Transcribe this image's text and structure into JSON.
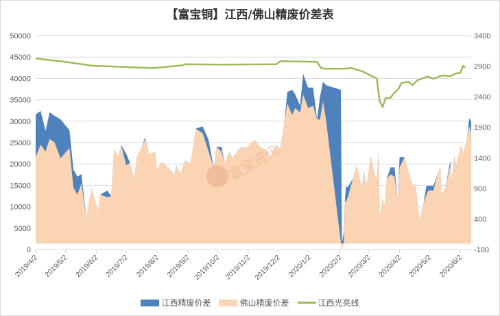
{
  "chart_data": {
    "type": "area",
    "title": "【富宝铜】江西/佛山精废价差表",
    "watermark": "富宝资讯",
    "left_axis": {
      "ylim": [
        0,
        50000
      ],
      "ticks": [
        "0",
        "5000",
        "10000",
        "15000",
        "20000",
        "25000",
        "30000",
        "35000",
        "40000",
        "45000",
        "50000"
      ]
    },
    "right_axis": {
      "ylim": [
        -100,
        3400
      ],
      "ticks": [
        "-100",
        "400",
        "900",
        "1400",
        "1900",
        "2400",
        "2900",
        "3400"
      ]
    },
    "x_ticks": [
      "2019/4/2",
      "2019/5/2",
      "2019/6/2",
      "2019/7/2",
      "2019/8/2",
      "2019/9/2",
      "2019/10/2",
      "2019/11/2",
      "2019/12/2",
      "2020/1/2",
      "2020/2/2",
      "2020/3/2",
      "2020/4/2",
      "2020/5/2",
      "2020/6/2"
    ],
    "grid": true,
    "legend_position": "bottom",
    "colors": {
      "jiangxi": "#4f81bd",
      "foshan": "#fbd4b4",
      "line": "#9bbb59"
    },
    "series": [
      {
        "name": "江西精废价差",
        "type": "area",
        "axis": "right",
        "points": [
          [
            "2019/4/2",
            2110
          ],
          [
            "2019/4/7",
            2169
          ],
          [
            "2019/4/12",
            1841
          ],
          [
            "2019/4/16",
            2144
          ],
          [
            "2019/4/21",
            2088
          ],
          [
            "2019/4/27",
            2031
          ],
          [
            "2019/5/6",
            1852
          ],
          [
            "2019/5/10",
            1205
          ],
          [
            "2019/5/14",
            1092
          ],
          [
            "2019/5/18",
            1134
          ],
          [
            "2019/5/23",
            419
          ],
          [
            "2019/5/28",
            910
          ],
          [
            "2019/6/4",
            532
          ],
          [
            "2019/6/6",
            797
          ],
          [
            "2019/6/13",
            865
          ],
          [
            "2019/6/17",
            775
          ],
          [
            "2019/6/20",
            1541
          ],
          [
            "2019/6/24",
            1411
          ],
          [
            "2019/6/27",
            1616
          ],
          [
            "2019/7/2",
            1467
          ],
          [
            "2019/7/6",
            1317
          ],
          [
            "2019/7/10",
            1055
          ],
          [
            "2019/7/13",
            1429
          ],
          [
            "2019/7/17",
            1541
          ],
          [
            "2019/7/21",
            1740
          ],
          [
            "2019/7/25",
            1448
          ],
          [
            "2019/7/31",
            1504
          ],
          [
            "2019/8/2",
            1205
          ],
          [
            "2019/8/7",
            1336
          ],
          [
            "2019/8/14",
            1224
          ],
          [
            "2019/8/20",
            1131
          ],
          [
            "2019/8/21",
            1280
          ],
          [
            "2019/8/26",
            1131
          ],
          [
            "2019/8/30",
            1355
          ],
          [
            "2019/9/5",
            1317
          ],
          [
            "2019/9/7",
            1541
          ],
          [
            "2019/9/10",
            1878
          ],
          [
            "2019/9/17",
            1916
          ],
          [
            "2019/9/23",
            1692
          ],
          [
            "2019/9/28",
            1243
          ],
          [
            "2019/10/1",
            1579
          ],
          [
            "2019/10/6",
            1579
          ],
          [
            "2019/10/9",
            1317
          ],
          [
            "2019/10/14",
            1504
          ],
          [
            "2019/10/17",
            1392
          ],
          [
            "2019/10/23",
            1541
          ],
          [
            "2019/10/26",
            1579
          ],
          [
            "2019/10/31",
            1560
          ],
          [
            "2019/11/8",
            1692
          ],
          [
            "2019/11/14",
            1579
          ],
          [
            "2019/11/21",
            1504
          ],
          [
            "2019/11/23",
            1373
          ],
          [
            "2019/11/30",
            1616
          ],
          [
            "2019/12/4",
            1541
          ],
          [
            "2019/12/8",
            1953
          ],
          [
            "2019/12/11",
            2477
          ],
          [
            "2019/12/16",
            2514
          ],
          [
            "2019/12/19",
            2439
          ],
          [
            "2019/12/24",
            2252
          ],
          [
            "2019/12/27",
            2775
          ],
          [
            "2020/1/1",
            2551
          ],
          [
            "2020/1/6",
            2551
          ],
          [
            "2020/1/10",
            2028
          ],
          [
            "2020/1/13",
            2402
          ],
          [
            "2020/1/16",
            2645
          ],
          [
            "2020/1/19",
            2589
          ],
          [
            "2020/2/3",
            2514
          ],
          [
            "2020/2/4",
            9
          ],
          [
            "2020/2/6",
            195
          ],
          [
            "2020/2/7",
            682
          ],
          [
            "2020/2/8",
            924
          ],
          [
            "2020/2/10",
            924
          ],
          [
            "2020/2/15",
            1055
          ],
          [
            "2020/2/19",
            1280
          ],
          [
            "2020/2/24",
            906
          ],
          [
            "2020/2/26",
            1187
          ],
          [
            "2020/2/29",
            943
          ],
          [
            "2020/3/4",
            1429
          ],
          [
            "2020/3/8",
            1131
          ],
          [
            "2020/3/10",
            1036
          ],
          [
            "2020/3/12",
            1485
          ],
          [
            "2020/3/13",
            419
          ],
          [
            "2020/3/16",
            738
          ],
          [
            "2020/3/18",
            270
          ],
          [
            "2020/3/20",
            1055
          ],
          [
            "2020/3/24",
            1243
          ],
          [
            "2020/3/28",
            1243
          ],
          [
            "2020/3/31",
            682
          ],
          [
            "2020/4/2",
            1411
          ],
          [
            "2020/4/7",
            1411
          ],
          [
            "2020/4/13",
            1055
          ],
          [
            "2020/4/16",
            906
          ],
          [
            "2020/4/18",
            980
          ],
          [
            "2020/4/22",
            382
          ],
          [
            "2020/4/26",
            644
          ],
          [
            "2020/4/29",
            943
          ],
          [
            "2020/5/1",
            943
          ],
          [
            "2020/5/6",
            943
          ],
          [
            "2020/5/10",
            1131
          ],
          [
            "2020/5/13",
            1243
          ],
          [
            "2020/5/14",
            794
          ],
          [
            "2020/5/18",
            906
          ],
          [
            "2020/5/23",
            1355
          ],
          [
            "2020/5/24",
            980
          ],
          [
            "2020/5/27",
            1429
          ],
          [
            "2020/5/29",
            1280
          ],
          [
            "2020/6/3",
            1616
          ],
          [
            "2020/6/5",
            1467
          ],
          [
            "2020/6/9",
            1729
          ],
          [
            "2020/6/11",
            2046
          ],
          [
            "2020/6/13",
            2000
          ]
        ]
      },
      {
        "name": "佛山精废价差",
        "type": "area",
        "axis": "right",
        "points": [
          [
            "2019/4/2",
            1411
          ],
          [
            "2019/4/7",
            1616
          ],
          [
            "2019/4/12",
            1504
          ],
          [
            "2019/4/16",
            1709
          ],
          [
            "2019/4/21",
            1653
          ],
          [
            "2019/4/27",
            1392
          ],
          [
            "2019/5/6",
            1560
          ],
          [
            "2019/5/10",
            910
          ],
          [
            "2019/5/14",
            797
          ],
          [
            "2019/5/18",
            980
          ],
          [
            "2019/5/23",
            419
          ],
          [
            "2019/5/28",
            910
          ],
          [
            "2019/6/4",
            532
          ],
          [
            "2019/6/6",
            797
          ],
          [
            "2019/6/13",
            756
          ],
          [
            "2019/6/17",
            775
          ],
          [
            "2019/6/20",
            1541
          ],
          [
            "2019/6/24",
            1411
          ],
          [
            "2019/6/27",
            1616
          ],
          [
            "2019/7/2",
            1280
          ],
          [
            "2019/7/6",
            1317
          ],
          [
            "2019/7/10",
            1055
          ],
          [
            "2019/7/13",
            1429
          ],
          [
            "2019/7/17",
            1541
          ],
          [
            "2019/7/21",
            1709
          ],
          [
            "2019/7/25",
            1448
          ],
          [
            "2019/7/31",
            1504
          ],
          [
            "2019/8/2",
            1205
          ],
          [
            "2019/8/7",
            1336
          ],
          [
            "2019/8/14",
            1224
          ],
          [
            "2019/8/20",
            1131
          ],
          [
            "2019/8/21",
            1280
          ],
          [
            "2019/8/26",
            1131
          ],
          [
            "2019/8/30",
            1355
          ],
          [
            "2019/9/5",
            1317
          ],
          [
            "2019/9/7",
            1541
          ],
          [
            "2019/9/10",
            1878
          ],
          [
            "2019/9/17",
            1804
          ],
          [
            "2019/9/23",
            1504
          ],
          [
            "2019/9/28",
            1243
          ],
          [
            "2019/10/1",
            1579
          ],
          [
            "2019/10/6",
            1504
          ],
          [
            "2019/10/9",
            1317
          ],
          [
            "2019/10/14",
            1504
          ],
          [
            "2019/10/17",
            1392
          ],
          [
            "2019/10/23",
            1541
          ],
          [
            "2019/10/26",
            1579
          ],
          [
            "2019/10/31",
            1560
          ],
          [
            "2019/11/8",
            1692
          ],
          [
            "2019/11/14",
            1579
          ],
          [
            "2019/11/21",
            1504
          ],
          [
            "2019/11/23",
            1373
          ],
          [
            "2019/11/30",
            1616
          ],
          [
            "2019/12/4",
            1541
          ],
          [
            "2019/12/8",
            1953
          ],
          [
            "2019/12/11",
            2289
          ],
          [
            "2019/12/16",
            2102
          ],
          [
            "2019/12/19",
            2214
          ],
          [
            "2019/12/24",
            2140
          ],
          [
            "2019/12/27",
            2439
          ],
          [
            "2020/1/1",
            2214
          ],
          [
            "2020/1/6",
            2252
          ],
          [
            "2020/1/10",
            2028
          ],
          [
            "2020/1/13",
            2028
          ],
          [
            "2020/1/16",
            2327
          ],
          [
            "2020/1/19",
            2028
          ],
          [
            "2020/2/3",
            9
          ],
          [
            "2020/2/4",
            -103
          ],
          [
            "2020/2/6",
            9
          ],
          [
            "2020/2/7",
            682
          ],
          [
            "2020/2/8",
            682
          ],
          [
            "2020/2/10",
            756
          ],
          [
            "2020/2/15",
            1055
          ],
          [
            "2020/2/19",
            1280
          ],
          [
            "2020/2/24",
            906
          ],
          [
            "2020/2/26",
            1187
          ],
          [
            "2020/2/29",
            943
          ],
          [
            "2020/3/4",
            1429
          ],
          [
            "2020/3/8",
            1131
          ],
          [
            "2020/3/10",
            1036
          ],
          [
            "2020/3/12",
            1485
          ],
          [
            "2020/3/13",
            419
          ],
          [
            "2020/3/16",
            738
          ],
          [
            "2020/3/18",
            644
          ],
          [
            "2020/3/20",
            1055
          ],
          [
            "2020/3/24",
            1131
          ],
          [
            "2020/3/28",
            1092
          ],
          [
            "2020/3/31",
            682
          ],
          [
            "2020/4/2",
            1243
          ],
          [
            "2020/4/7",
            1411
          ],
          [
            "2020/4/13",
            1055
          ],
          [
            "2020/4/16",
            906
          ],
          [
            "2020/4/18",
            980
          ],
          [
            "2020/4/22",
            382
          ],
          [
            "2020/4/26",
            644
          ],
          [
            "2020/4/29",
            794
          ],
          [
            "2020/5/1",
            868
          ],
          [
            "2020/5/6",
            868
          ],
          [
            "2020/5/10",
            1131
          ],
          [
            "2020/5/13",
            1243
          ],
          [
            "2020/5/14",
            794
          ],
          [
            "2020/5/18",
            906
          ],
          [
            "2020/5/23",
            1280
          ],
          [
            "2020/5/24",
            980
          ],
          [
            "2020/5/27",
            1429
          ],
          [
            "2020/5/29",
            1280
          ],
          [
            "2020/6/3",
            1616
          ],
          [
            "2020/6/5",
            1467
          ],
          [
            "2020/6/9",
            1729
          ],
          [
            "2020/6/11",
            1916
          ],
          [
            "2020/6/13",
            1804
          ]
        ]
      },
      {
        "name": "江西光亮线",
        "type": "line",
        "axis": "left",
        "points": [
          [
            "2019/4/2",
            44670
          ],
          [
            "2019/5/2",
            43870
          ],
          [
            "2019/5/30",
            42950
          ],
          [
            "2019/7/29",
            42420
          ],
          [
            "2019/8/28",
            43060
          ],
          [
            "2019/8/30",
            43320
          ],
          [
            "2019/10/6",
            43220
          ],
          [
            "2019/11/30",
            43320
          ],
          [
            "2019/12/4",
            44020
          ],
          [
            "2020/1/10",
            43860
          ],
          [
            "2020/1/14",
            42420
          ],
          [
            "2020/1/19",
            42260
          ],
          [
            "2020/2/4",
            42260
          ],
          [
            "2020/2/14",
            42420
          ],
          [
            "2020/2/25",
            41620
          ],
          [
            "2020/3/5",
            40550
          ],
          [
            "2020/3/10",
            40010
          ],
          [
            "2020/3/13",
            34660
          ],
          [
            "2020/3/16",
            33330
          ],
          [
            "2020/3/19",
            35460
          ],
          [
            "2020/3/24",
            35460
          ],
          [
            "2020/3/26",
            36170
          ],
          [
            "2020/4/1",
            37610
          ],
          [
            "2020/4/4",
            38940
          ],
          [
            "2020/4/11",
            39210
          ],
          [
            "2020/4/15",
            38410
          ],
          [
            "2020/4/20",
            39580
          ],
          [
            "2020/4/30",
            40430
          ],
          [
            "2020/5/6",
            39900
          ],
          [
            "2020/5/15",
            40710
          ],
          [
            "2020/5/23",
            40550
          ],
          [
            "2020/5/29",
            41190
          ],
          [
            "2020/6/2",
            41300
          ],
          [
            "2020/6/5",
            42950
          ],
          [
            "2020/6/7",
            42500
          ]
        ]
      }
    ]
  }
}
